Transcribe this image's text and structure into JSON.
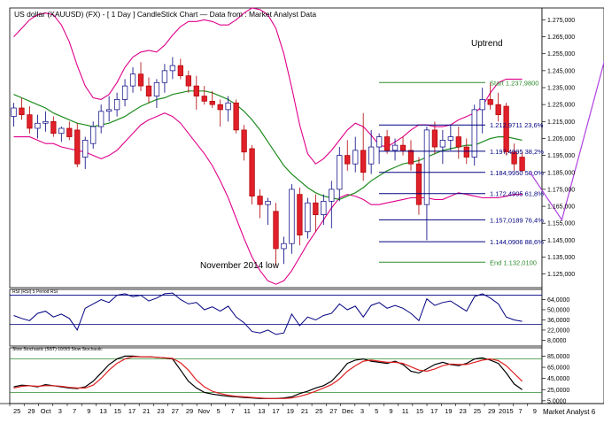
{
  "header": {
    "title": "US dollar (XAUUSD) (FX) -  [ 1 Day ] CandleStick Chart — Data from : Market Analyst Data"
  },
  "annotations": {
    "uptrend": "Uptrend",
    "november_low": "November 2014 low"
  },
  "fibonacci": [
    {
      "label": "Start 1.237,9800",
      "value": 1237.98,
      "color": "#2e8b2e"
    },
    {
      "label": "1.212,9711 23,6%",
      "value": 1212.97,
      "color": "#000080"
    },
    {
      "label": "1.197,4995 38,2%",
      "value": 1197.5,
      "color": "#000080"
    },
    {
      "label": "1.184,9950 50,0%",
      "value": 1185.0,
      "color": "#000080"
    },
    {
      "label": "1.172,4905 61,8%",
      "value": 1172.49,
      "color": "#000080"
    },
    {
      "label": "1.157,0189 76,4%",
      "value": 1157.02,
      "color": "#000080"
    },
    {
      "label": "1.144,0906 88,6%",
      "value": 1144.09,
      "color": "#000080"
    },
    {
      "label": "End 1.132,0100",
      "value": 1132.01,
      "color": "#2e8b2e"
    }
  ],
  "rsi_panel": {
    "label": "RSI (RSI) 5 Period RSI",
    "ticks": [
      "64,0000",
      "50,0000",
      "36,0000",
      "22,0000",
      "8,0000"
    ],
    "tick_values": [
      64,
      50,
      36,
      22,
      8
    ],
    "ylim": [
      0,
      78
    ],
    "levels": [
      70,
      30
    ]
  },
  "stoch_panel": {
    "label": "Slow Stochastic (SST) 10/3/3 Slow Stochastic",
    "ticks": [
      "85,0000",
      "65,0000",
      "45,0000",
      "25,0000",
      "5,0000"
    ],
    "tick_values": [
      85,
      65,
      45,
      25,
      5
    ],
    "ylim": [
      0,
      100
    ],
    "levels": [
      80,
      20
    ]
  },
  "x_axis": {
    "labels": [
      "25",
      "29",
      "Oct",
      "3",
      "7",
      "9",
      "13",
      "15",
      "17",
      "21",
      "23",
      "27",
      "29",
      "Nov",
      "5",
      "7",
      "11",
      "13",
      "17",
      "19",
      "21",
      "25",
      "27",
      "Dec",
      "3",
      "5",
      "9",
      "11",
      "15",
      "17",
      "19",
      "23",
      "25",
      "29",
      "2015",
      "7",
      "9"
    ],
    "footer": "Market Analyst 6"
  },
  "chart_data": {
    "type": "candlestick",
    "title": "US dollar (XAUUSD) (FX) -  [ 1 Day ] CandleStick Chart",
    "price_axis": {
      "ticks": [
        "1.275,000",
        "1.265,000",
        "1.255,000",
        "1.245,000",
        "1.235,000",
        "1.225,000",
        "1.215,000",
        "1.205,000",
        "1.195,000",
        "1.185,000",
        "1.175,000",
        "1.165,000",
        "1.155,000",
        "1.145,000",
        "1.135,000",
        "1.125,000"
      ],
      "tick_values": [
        1275,
        1265,
        1255,
        1245,
        1235,
        1225,
        1215,
        1205,
        1195,
        1185,
        1175,
        1165,
        1155,
        1145,
        1135,
        1125
      ],
      "ylim": [
        1117,
        1282
      ]
    },
    "candles": [
      [
        1218,
        1226,
        1212,
        1223
      ],
      [
        1223,
        1229,
        1216,
        1219
      ],
      [
        1219,
        1224,
        1208,
        1211
      ],
      [
        1211,
        1219,
        1205,
        1214
      ],
      [
        1214,
        1221,
        1209,
        1215
      ],
      [
        1215,
        1218,
        1206,
        1208
      ],
      [
        1208,
        1212,
        1203,
        1211
      ],
      [
        1211,
        1215,
        1204,
        1206
      ],
      [
        1210,
        1214,
        1188,
        1190
      ],
      [
        1194,
        1206,
        1187,
        1204
      ],
      [
        1202,
        1215,
        1199,
        1212
      ],
      [
        1212,
        1225,
        1208,
        1221
      ],
      [
        1221,
        1230,
        1215,
        1222
      ],
      [
        1222,
        1232,
        1218,
        1228
      ],
      [
        1228,
        1240,
        1224,
        1236
      ],
      [
        1236,
        1247,
        1232,
        1243
      ],
      [
        1243,
        1250,
        1233,
        1236
      ],
      [
        1236,
        1241,
        1226,
        1230
      ],
      [
        1230,
        1240,
        1223,
        1238
      ],
      [
        1238,
        1249,
        1232,
        1245
      ],
      [
        1245,
        1253,
        1240,
        1248
      ],
      [
        1248,
        1252,
        1240,
        1242
      ],
      [
        1242,
        1245,
        1232,
        1236
      ],
      [
        1236,
        1242,
        1222,
        1230
      ],
      [
        1230,
        1236,
        1225,
        1227
      ],
      [
        1227,
        1233,
        1223,
        1225
      ],
      [
        1225,
        1228,
        1212,
        1222
      ],
      [
        1222,
        1230,
        1215,
        1226
      ],
      [
        1226,
        1228,
        1208,
        1210
      ],
      [
        1210,
        1213,
        1192,
        1197
      ],
      [
        1199,
        1201,
        1166,
        1171
      ],
      [
        1171,
        1175,
        1158,
        1166
      ],
      [
        1166,
        1170,
        1154,
        1168
      ],
      [
        1162,
        1167,
        1130,
        1140
      ],
      [
        1140,
        1147,
        1131,
        1143
      ],
      [
        1143,
        1178,
        1137,
        1175
      ],
      [
        1172,
        1176,
        1142,
        1148
      ],
      [
        1150,
        1170,
        1146,
        1167
      ],
      [
        1167,
        1172,
        1150,
        1160
      ],
      [
        1160,
        1172,
        1154,
        1168
      ],
      [
        1168,
        1180,
        1152,
        1175
      ],
      [
        1175,
        1200,
        1168,
        1195
      ],
      [
        1195,
        1204,
        1186,
        1190
      ],
      [
        1190,
        1206,
        1185,
        1198
      ],
      [
        1198,
        1220,
        1180,
        1185
      ],
      [
        1190,
        1210,
        1184,
        1200
      ],
      [
        1200,
        1208,
        1190,
        1206
      ],
      [
        1206,
        1210,
        1196,
        1198
      ],
      [
        1198,
        1205,
        1192,
        1201
      ],
      [
        1201,
        1206,
        1195,
        1198
      ],
      [
        1198,
        1204,
        1186,
        1190
      ],
      [
        1190,
        1194,
        1160,
        1166
      ],
      [
        1166,
        1212,
        1145,
        1210
      ],
      [
        1210,
        1215,
        1196,
        1200
      ],
      [
        1200,
        1210,
        1190,
        1204
      ],
      [
        1204,
        1213,
        1198,
        1206
      ],
      [
        1206,
        1212,
        1193,
        1200
      ],
      [
        1200,
        1205,
        1190,
        1194
      ],
      [
        1194,
        1225,
        1189,
        1222
      ],
      [
        1222,
        1235,
        1208,
        1228
      ],
      [
        1228,
        1238,
        1222,
        1225
      ],
      [
        1225,
        1232,
        1215,
        1219
      ],
      [
        1224,
        1226,
        1195,
        1197
      ],
      [
        1197,
        1202,
        1186,
        1190
      ],
      [
        1194,
        1197,
        1185,
        1186
      ]
    ],
    "overlays": {
      "moving_average": [
        1231,
        1229,
        1227,
        1225,
        1223,
        1220,
        1218,
        1216,
        1214,
        1213,
        1212,
        1213,
        1214,
        1216,
        1218,
        1221,
        1224,
        1226,
        1228,
        1229,
        1231,
        1232,
        1233,
        1233,
        1233,
        1232,
        1230,
        1228,
        1225,
        1221,
        1216,
        1210,
        1203,
        1196,
        1189,
        1184,
        1180,
        1176,
        1173,
        1171,
        1170,
        1169,
        1171,
        1173,
        1176,
        1180,
        1183,
        1186,
        1188,
        1190,
        1191,
        1192,
        1194,
        1196,
        1198,
        1199,
        1200,
        1201,
        1201,
        1203,
        1205,
        1206,
        1206,
        1205,
        1204
      ],
      "upper_band": [
        1265,
        1270,
        1275,
        1278,
        1279,
        1278,
        1272,
        1262,
        1248,
        1236,
        1229,
        1228,
        1231,
        1238,
        1247,
        1253,
        1256,
        1257,
        1256,
        1260,
        1266,
        1271,
        1274,
        1274,
        1275,
        1274,
        1272,
        1272,
        1275,
        1279,
        1282,
        1281,
        1278,
        1270,
        1255,
        1235,
        1213,
        1196,
        1190,
        1193,
        1198,
        1204,
        1210,
        1214,
        1212,
        1207,
        1201,
        1200,
        1203,
        1206,
        1210,
        1213,
        1213,
        1212,
        1212,
        1213,
        1216,
        1218,
        1220,
        1224,
        1232,
        1238,
        1240,
        1240,
        1240
      ],
      "lower_band": [
        1206,
        1206,
        1206,
        1204,
        1202,
        1202,
        1200,
        1199,
        1198,
        1197,
        1195,
        1193,
        1195,
        1198,
        1203,
        1208,
        1213,
        1216,
        1218,
        1220,
        1218,
        1214,
        1208,
        1202,
        1196,
        1189,
        1180,
        1170,
        1158,
        1146,
        1135,
        1127,
        1121,
        1119,
        1121,
        1127,
        1135,
        1143,
        1150,
        1157,
        1164,
        1170,
        1172,
        1171,
        1169,
        1166,
        1166,
        1167,
        1168,
        1169,
        1170,
        1170,
        1170,
        1169,
        1169,
        1171,
        1173,
        1172,
        1171,
        1170,
        1170,
        1170,
        1171,
        1172,
        1172
      ]
    },
    "projection": [
      [
        65,
        1185
      ],
      [
        69,
        1157
      ],
      [
        75,
        1262
      ]
    ],
    "rsi": [
      42,
      38,
      35,
      45,
      48,
      40,
      44,
      38,
      22,
      52,
      58,
      64,
      60,
      70,
      72,
      68,
      70,
      62,
      66,
      72,
      73,
      64,
      58,
      60,
      50,
      54,
      48,
      55,
      40,
      32,
      20,
      18,
      22,
      16,
      18,
      44,
      28,
      40,
      36,
      42,
      45,
      58,
      50,
      55,
      40,
      56,
      60,
      52,
      56,
      52,
      45,
      35,
      65,
      56,
      60,
      62,
      55,
      48,
      68,
      72,
      66,
      58,
      40,
      36,
      34
    ],
    "stoch_k": [
      30,
      33,
      32,
      30,
      34,
      32,
      30,
      28,
      27,
      30,
      40,
      55,
      70,
      80,
      85,
      85,
      84,
      84,
      83,
      82,
      80,
      60,
      40,
      28,
      20,
      17,
      15,
      13,
      12,
      11,
      10,
      9,
      9,
      9,
      10,
      12,
      18,
      22,
      28,
      32,
      40,
      55,
      72,
      78,
      80,
      76,
      74,
      72,
      76,
      70,
      58,
      55,
      62,
      70,
      74,
      70,
      68,
      72,
      80,
      82,
      78,
      72,
      55,
      35,
      25
    ],
    "stoch_d": [
      28,
      31,
      32,
      31,
      32,
      32,
      31,
      29,
      28,
      28,
      33,
      45,
      60,
      72,
      80,
      84,
      84,
      84,
      83,
      82,
      81,
      73,
      60,
      42,
      30,
      22,
      18,
      15,
      13,
      12,
      11,
      10,
      9,
      9,
      9,
      10,
      13,
      17,
      22,
      28,
      34,
      44,
      58,
      68,
      76,
      78,
      76,
      74,
      74,
      72,
      66,
      60,
      58,
      62,
      68,
      71,
      70,
      70,
      74,
      78,
      80,
      77,
      68,
      54,
      40
    ]
  }
}
